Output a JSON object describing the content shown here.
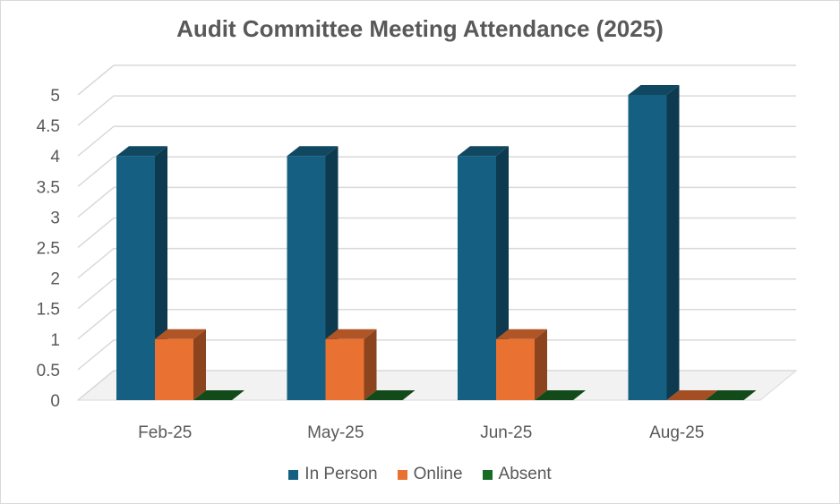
{
  "chart_data": {
    "type": "bar",
    "title": "Audit Committee Meeting Attendance (2025)",
    "categories": [
      "Feb-25",
      "May-25",
      "Jun-25",
      "Aug-25"
    ],
    "series": [
      {
        "name": "In Person",
        "values": [
          4,
          4,
          4,
          5
        ],
        "color": "#156082"
      },
      {
        "name": "Online",
        "values": [
          1,
          1,
          1,
          0
        ],
        "color": "#e97132"
      },
      {
        "name": "Absent",
        "values": [
          0,
          0,
          0,
          0
        ],
        "color": "#196b24"
      }
    ],
    "ylim": [
      0,
      5
    ],
    "yticks": [
      "0",
      "0.5",
      "1",
      "1.5",
      "2",
      "2.5",
      "3",
      "3.5",
      "4",
      "4.5",
      "5"
    ],
    "grid": true,
    "legend_position": "bottom",
    "style": "3d-clustered-column"
  }
}
